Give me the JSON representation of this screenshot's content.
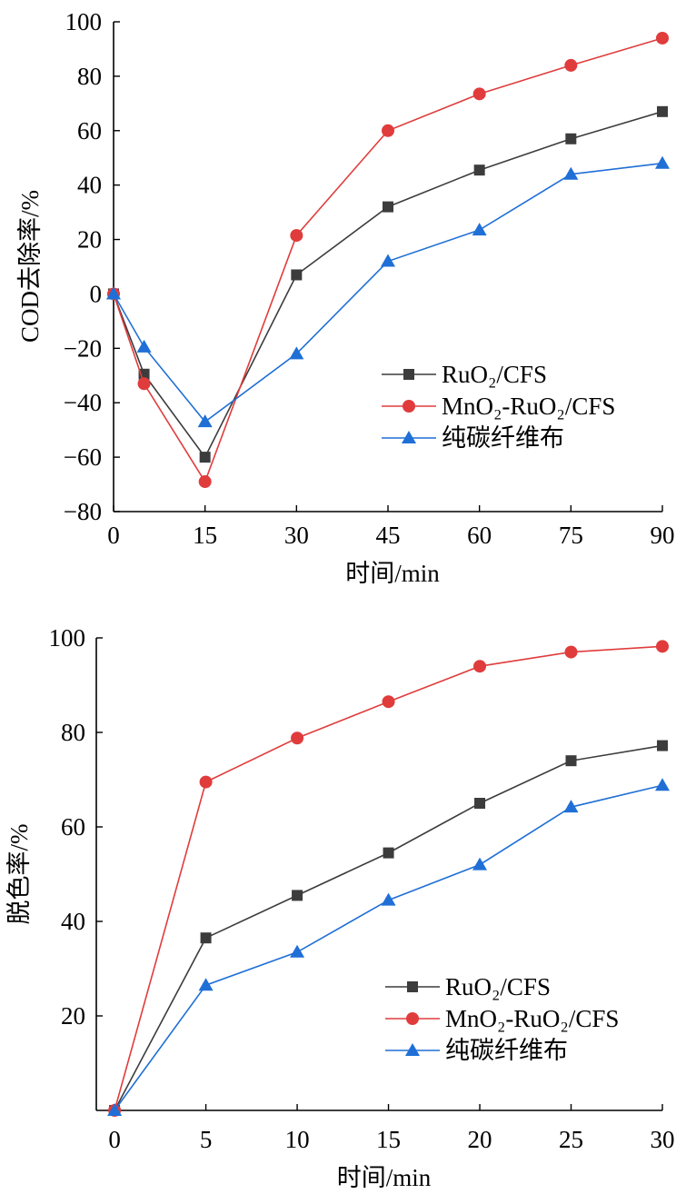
{
  "chart_data": [
    {
      "type": "line",
      "title": "",
      "xlabel": "时间/min",
      "ylabel": "COD去除率/%",
      "x": [
        0,
        5,
        15,
        30,
        45,
        60,
        75,
        90
      ],
      "xticks": [
        "0",
        "15",
        "30",
        "45",
        "60",
        "75",
        "90"
      ],
      "xtick_values": [
        0,
        15,
        30,
        45,
        60,
        75,
        90
      ],
      "yticks": [
        "−80",
        "−60",
        "−40",
        "−20",
        "0",
        "20",
        "40",
        "60",
        "80",
        "100"
      ],
      "ytick_values": [
        -80,
        -60,
        -40,
        -20,
        0,
        20,
        40,
        60,
        80,
        100
      ],
      "xlim": [
        0,
        90
      ],
      "ylim": [
        -80,
        100
      ],
      "grid": false,
      "legend_position": "right-middle",
      "series": [
        {
          "name": "RuO₂/CFS",
          "marker": "square",
          "color": "#3c3c3c",
          "values": [
            0,
            -29.5,
            -60,
            7,
            32,
            45.5,
            57,
            67
          ]
        },
        {
          "name": "MnO₂-RuO₂/CFS",
          "marker": "circle",
          "color": "#e03c3c",
          "values": [
            0,
            -33,
            -69,
            21.5,
            60,
            73.5,
            84,
            94
          ]
        },
        {
          "name": "纯碳纤维布",
          "marker": "triangle",
          "color": "#1f6fd6",
          "values": [
            0,
            -19.5,
            -47,
            -22,
            12,
            23.5,
            44,
            48
          ]
        }
      ]
    },
    {
      "type": "line",
      "title": "",
      "xlabel": "时间/min",
      "ylabel": "脱色率/%",
      "x": [
        0,
        5,
        10,
        15,
        20,
        25,
        30
      ],
      "xticks": [
        "0",
        "5",
        "10",
        "15",
        "20",
        "25",
        "30"
      ],
      "xtick_values": [
        0,
        5,
        10,
        15,
        20,
        25,
        30
      ],
      "yticks": [
        "20",
        "40",
        "60",
        "80",
        "100"
      ],
      "ytick_values": [
        20,
        40,
        60,
        80,
        100
      ],
      "xlim": [
        -1,
        30
      ],
      "ylim": [
        0,
        100
      ],
      "grid": false,
      "legend_position": "right-bottom",
      "series": [
        {
          "name": "RuO₂/CFS",
          "marker": "square",
          "color": "#3c3c3c",
          "values": [
            0,
            36.5,
            45.5,
            54.5,
            65,
            74,
            77.2
          ]
        },
        {
          "name": "MnO₂-RuO₂/CFS",
          "marker": "circle",
          "color": "#e03c3c",
          "values": [
            0,
            69.5,
            78.8,
            86.5,
            94,
            97,
            98.2
          ]
        },
        {
          "name": "纯碳纤维布",
          "marker": "triangle",
          "color": "#1f6fd6",
          "values": [
            0,
            26.5,
            33.5,
            44.5,
            52,
            64.2,
            68.8
          ]
        }
      ]
    }
  ]
}
